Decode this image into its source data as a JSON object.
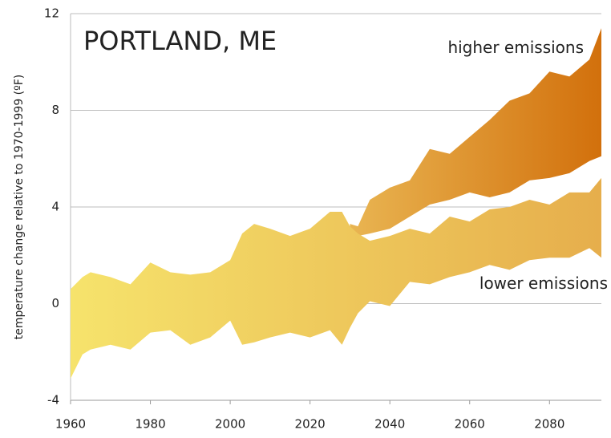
{
  "chart_data": {
    "type": "band",
    "title": "PORTLAND, ME",
    "y_label": "temperature change relative to 1970-1999 (ºF)",
    "x": [
      1960,
      1963,
      1965,
      1970,
      1975,
      1980,
      1985,
      1990,
      1995,
      2000,
      2003,
      2006,
      2010,
      2015,
      2020,
      2025,
      2028,
      2030,
      2032,
      2035,
      2040,
      2045,
      2050,
      2055,
      2060,
      2065,
      2070,
      2075,
      2080,
      2085,
      2090,
      2093
    ],
    "xlim": [
      1960,
      2093
    ],
    "xticks": [
      1960,
      1980,
      2000,
      2020,
      2040,
      2060,
      2080
    ],
    "ylim": [
      -4,
      12
    ],
    "yticks": [
      -4,
      0,
      4,
      8,
      12
    ],
    "grid": true,
    "series": [
      {
        "name": "higher emissions",
        "colors": [
          "#e9b552",
          "#d2700c"
        ],
        "high": [
          null,
          null,
          null,
          null,
          null,
          null,
          null,
          null,
          null,
          null,
          null,
          null,
          null,
          null,
          null,
          null,
          null,
          3.3,
          3.2,
          4.3,
          4.8,
          5.1,
          6.4,
          6.2,
          6.9,
          7.6,
          8.4,
          8.7,
          9.6,
          9.4,
          10.1,
          11.4
        ],
        "low": [
          null,
          null,
          null,
          null,
          null,
          null,
          null,
          null,
          null,
          null,
          null,
          null,
          null,
          null,
          null,
          null,
          null,
          2.6,
          2.8,
          2.9,
          3.1,
          3.6,
          4.1,
          4.3,
          4.6,
          4.4,
          4.6,
          5.1,
          5.2,
          5.4,
          5.9,
          6.1
        ]
      },
      {
        "name": "lower emissions",
        "colors": [
          "#f6e36c",
          "#e6ae4c"
        ],
        "high": [
          0.6,
          1.1,
          1.3,
          1.1,
          0.8,
          1.7,
          1.3,
          1.2,
          1.3,
          1.8,
          2.9,
          3.3,
          3.1,
          2.8,
          3.1,
          3.8,
          3.8,
          3.2,
          2.9,
          2.6,
          2.8,
          3.1,
          2.9,
          3.6,
          3.4,
          3.9,
          4.0,
          4.3,
          4.1,
          4.6,
          4.6,
          5.2
        ],
        "low": [
          -3.1,
          -2.1,
          -1.9,
          -1.7,
          -1.9,
          -1.2,
          -1.1,
          -1.7,
          -1.4,
          -0.7,
          -1.7,
          -1.6,
          -1.4,
          -1.2,
          -1.4,
          -1.1,
          -1.7,
          -1.0,
          -0.4,
          0.1,
          -0.1,
          0.9,
          0.8,
          1.1,
          1.3,
          1.6,
          1.4,
          1.8,
          1.9,
          1.9,
          2.3,
          1.9
        ]
      }
    ]
  }
}
